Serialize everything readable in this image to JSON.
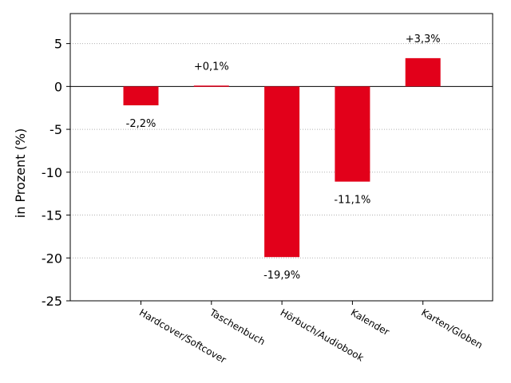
{
  "chart_data": {
    "type": "bar",
    "ylabel": "in Prozent (%)",
    "ylim": [
      -25,
      8.5
    ],
    "yticks": [
      5,
      0,
      -5,
      -10,
      -15,
      -20,
      -25
    ],
    "ytick_labels": [
      "5",
      "0",
      "-5",
      "-10",
      "-15",
      "-20",
      "-25"
    ],
    "grid": "horizontal-dotted",
    "categories": [
      "Hardcover/Softcover",
      "Taschenbuch",
      "Hörbuch/Audiobook",
      "Kalender",
      "Karten/Globen"
    ],
    "values": [
      -2.2,
      0.1,
      -19.9,
      -11.1,
      3.3
    ],
    "data_labels": [
      "-2,2%",
      "+0,1%",
      "-19,9%",
      "-11,1%",
      "+3,3%"
    ],
    "bar_color": "#e2001a"
  }
}
